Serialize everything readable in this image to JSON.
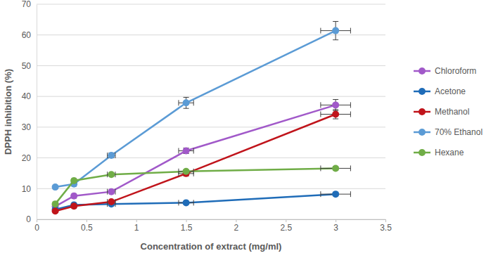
{
  "chart_data": {
    "type": "line",
    "x_label": "Concentration of extract (mg/ml)",
    "y_label": "DPPH inhibition (%)",
    "x": [
      0.1875,
      0.375,
      0.75,
      1.5,
      3
    ],
    "x_errors": [
      0.01,
      0.02,
      0.04,
      0.075,
      0.15
    ],
    "series": [
      {
        "name": "Chloroform",
        "color": "#a159c9",
        "values": [
          4.2,
          7.6,
          9.0,
          22.3,
          37.2
        ],
        "errors": [
          0.3,
          0.4,
          0.5,
          0.9,
          1.8
        ]
      },
      {
        "name": "Acetone",
        "color": "#1f6cb8",
        "values": [
          3.2,
          4.7,
          5.0,
          5.4,
          8.2
        ],
        "errors": [
          0.2,
          0.3,
          0.3,
          0.4,
          0.5
        ]
      },
      {
        "name": "Methanol",
        "color": "#c0141b",
        "values": [
          2.7,
          4.3,
          5.7,
          14.9,
          34.2
        ],
        "errors": [
          0.2,
          0.3,
          0.4,
          0.8,
          1.5
        ]
      },
      {
        "name": "70% Ethanol",
        "color": "#5b9bd5",
        "values": [
          10.5,
          11.5,
          20.8,
          37.9,
          61.4
        ],
        "errors": [
          0.4,
          0.5,
          0.8,
          1.8,
          3.0
        ]
      },
      {
        "name": "Hexane",
        "color": "#70ad47",
        "values": [
          5.0,
          12.6,
          14.6,
          15.6,
          16.6
        ],
        "errors": [
          0.3,
          0.5,
          0.5,
          0.5,
          0.6
        ]
      }
    ],
    "marker": "circle",
    "xlim": [
      0,
      3.5
    ],
    "xticks": [
      0,
      0.5,
      1,
      1.5,
      2,
      2.5,
      3,
      3.5
    ],
    "ylim": [
      0,
      70
    ],
    "yticks": [
      0,
      10,
      20,
      30,
      40,
      50,
      60,
      70
    ],
    "grid": true,
    "legend": "right"
  }
}
